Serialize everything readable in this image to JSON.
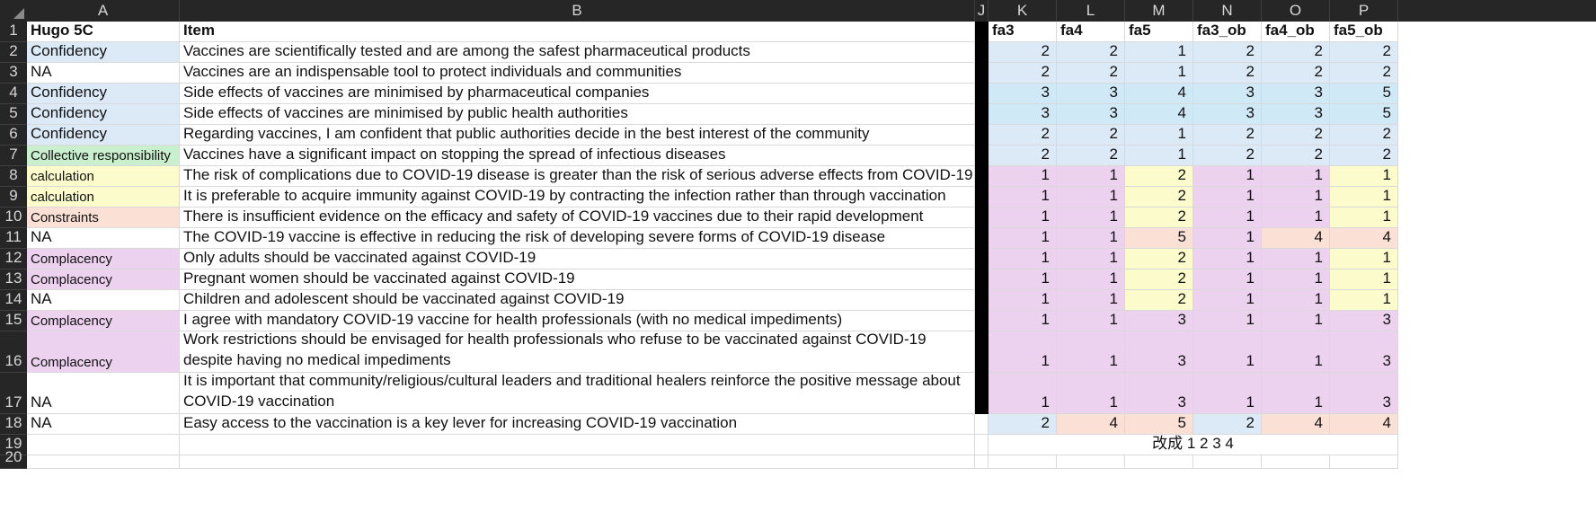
{
  "columns": [
    "A",
    "B",
    "J",
    "K",
    "L",
    "M",
    "N",
    "O",
    "P"
  ],
  "row_numbers": [
    "1",
    "2",
    "3",
    "4",
    "5",
    "6",
    "7",
    "8",
    "9",
    "10",
    "11",
    "12",
    "13",
    "14",
    "15",
    "16",
    "17",
    "18",
    "19",
    "20"
  ],
  "header": {
    "a": "Hugo 5C",
    "b": "Item",
    "k": "fa3",
    "l": "fa4",
    "m": "fa5",
    "n": "fa3_ob",
    "o": "fa4_ob",
    "p": "fa5_ob"
  },
  "rows": [
    {
      "a": "Confidency",
      "b": "Vaccines are scientifically tested and are among the safest pharmaceutical products",
      "k": "2",
      "l": "2",
      "m": "1",
      "n": "2",
      "o": "2",
      "p": "2"
    },
    {
      "a": "NA",
      "b": "Vaccines are an indispensable tool to protect individuals and communities",
      "k": "2",
      "l": "2",
      "m": "1",
      "n": "2",
      "o": "2",
      "p": "2"
    },
    {
      "a": "Confidency",
      "b": "Side effects of vaccines are minimised by pharmaceutical companies",
      "k": "3",
      "l": "3",
      "m": "4",
      "n": "3",
      "o": "3",
      "p": "5"
    },
    {
      "a": "Confidency",
      "b": "Side effects of vaccines are minimised by public health authorities",
      "k": "3",
      "l": "3",
      "m": "4",
      "n": "3",
      "o": "3",
      "p": "5"
    },
    {
      "a": "Confidency",
      "b": "Regarding vaccines, I am confident that public authorities decide in the best interest of the community",
      "k": "2",
      "l": "2",
      "m": "1",
      "n": "2",
      "o": "2",
      "p": "2"
    },
    {
      "a": "Collective responsibility",
      "b": "Vaccines have a significant impact on stopping the spread of infectious diseases",
      "k": "2",
      "l": "2",
      "m": "1",
      "n": "2",
      "o": "2",
      "p": "2"
    },
    {
      "a": "calculation",
      "b": "The risk of complications due to COVID-19 disease is greater than the risk of serious adverse effects from COVID-19 vaccine",
      "k": "1",
      "l": "1",
      "m": "2",
      "n": "1",
      "o": "1",
      "p": "1"
    },
    {
      "a": "calculation",
      "b": "It is preferable to acquire immunity against COVID-19 by contracting the infection rather than through vaccination",
      "k": "1",
      "l": "1",
      "m": "2",
      "n": "1",
      "o": "1",
      "p": "1"
    },
    {
      "a": "Constraints",
      "b": "There is insufficient evidence on the efficacy and safety of COVID-19 vaccines due to their rapid development",
      "k": "1",
      "l": "1",
      "m": "2",
      "n": "1",
      "o": "1",
      "p": "1"
    },
    {
      "a": "NA",
      "b": "The COVID-19 vaccine is effective in reducing the risk of developing severe forms of COVID-19 disease",
      "k": "1",
      "l": "1",
      "m": "5",
      "n": "1",
      "o": "4",
      "p": "4"
    },
    {
      "a": "Complacency",
      "b": "Only adults should be vaccinated against COVID-19",
      "k": "1",
      "l": "1",
      "m": "2",
      "n": "1",
      "o": "1",
      "p": "1"
    },
    {
      "a": "Complacency",
      "b": "Pregnant women should be vaccinated against COVID-19",
      "k": "1",
      "l": "1",
      "m": "2",
      "n": "1",
      "o": "1",
      "p": "1"
    },
    {
      "a": "NA",
      "b": "Children and adolescent should be vaccinated against COVID-19",
      "k": "1",
      "l": "1",
      "m": "2",
      "n": "1",
      "o": "1",
      "p": "1"
    },
    {
      "a": "Complacency",
      "b": "I agree with mandatory COVID-19 vaccine for health professionals (with no medical impediments)",
      "k": "1",
      "l": "1",
      "m": "3",
      "n": "1",
      "o": "1",
      "p": "3"
    },
    {
      "a": "Complacency",
      "b": "Work restrictions should be envisaged for health professionals who refuse to be vaccinated against COVID-19 despite having no medical impediments",
      "k": "1",
      "l": "1",
      "m": "3",
      "n": "1",
      "o": "1",
      "p": "3"
    },
    {
      "a": "NA",
      "b": "It is important that community/religious/cultural leaders and traditional healers reinforce the positive message about COVID-19 vaccination",
      "k": "1",
      "l": "1",
      "m": "3",
      "n": "1",
      "o": "1",
      "p": "3"
    },
    {
      "a": "NA",
      "b": "Easy access to the vaccination is a key lever for increasing COVID-19 vaccination",
      "k": "2",
      "l": "4",
      "m": "5",
      "n": "2",
      "o": "4",
      "p": "4"
    }
  ],
  "note_row19": "改成 1 2 3 4",
  "fill_colors": {
    "blue": "#dce9f7",
    "cyan": "#cfe9f7",
    "green": "#c9efcf",
    "yellow": "#fbfbcb",
    "peach": "#fbe0d6",
    "pink": "#edd2ef",
    "header_bg": "#262626"
  },
  "a_fill": [
    "blue",
    "none",
    "blue",
    "blue",
    "blue",
    "green",
    "yellow",
    "yellow",
    "peach",
    "none",
    "pink",
    "pink",
    "none",
    "pink",
    "pink",
    "none",
    "none"
  ],
  "kp_fill": [
    [
      "blue",
      "blue",
      "blue",
      "blue",
      "blue",
      "blue"
    ],
    [
      "blue",
      "blue",
      "blue",
      "blue",
      "blue",
      "blue"
    ],
    [
      "cyan",
      "cyan",
      "cyan",
      "cyan",
      "cyan",
      "cyan"
    ],
    [
      "cyan",
      "cyan",
      "cyan",
      "cyan",
      "cyan",
      "cyan"
    ],
    [
      "blue",
      "blue",
      "blue",
      "blue",
      "blue",
      "blue"
    ],
    [
      "blue",
      "blue",
      "blue",
      "blue",
      "blue",
      "blue"
    ],
    [
      "pink",
      "pink",
      "yellow",
      "pink",
      "pink",
      "yellow"
    ],
    [
      "pink",
      "pink",
      "yellow",
      "pink",
      "pink",
      "yellow"
    ],
    [
      "pink",
      "pink",
      "yellow",
      "pink",
      "pink",
      "yellow"
    ],
    [
      "pink",
      "pink",
      "peach",
      "pink",
      "peach",
      "peach"
    ],
    [
      "pink",
      "pink",
      "yellow",
      "pink",
      "pink",
      "yellow"
    ],
    [
      "pink",
      "pink",
      "yellow",
      "pink",
      "pink",
      "yellow"
    ],
    [
      "pink",
      "pink",
      "yellow",
      "pink",
      "pink",
      "yellow"
    ],
    [
      "pink",
      "pink",
      "pink",
      "pink",
      "pink",
      "pink"
    ],
    [
      "pink",
      "pink",
      "pink",
      "pink",
      "pink",
      "pink"
    ],
    [
      "pink",
      "pink",
      "pink",
      "pink",
      "pink",
      "pink"
    ],
    [
      "blue",
      "peach",
      "peach",
      "blue",
      "peach",
      "peach"
    ]
  ]
}
